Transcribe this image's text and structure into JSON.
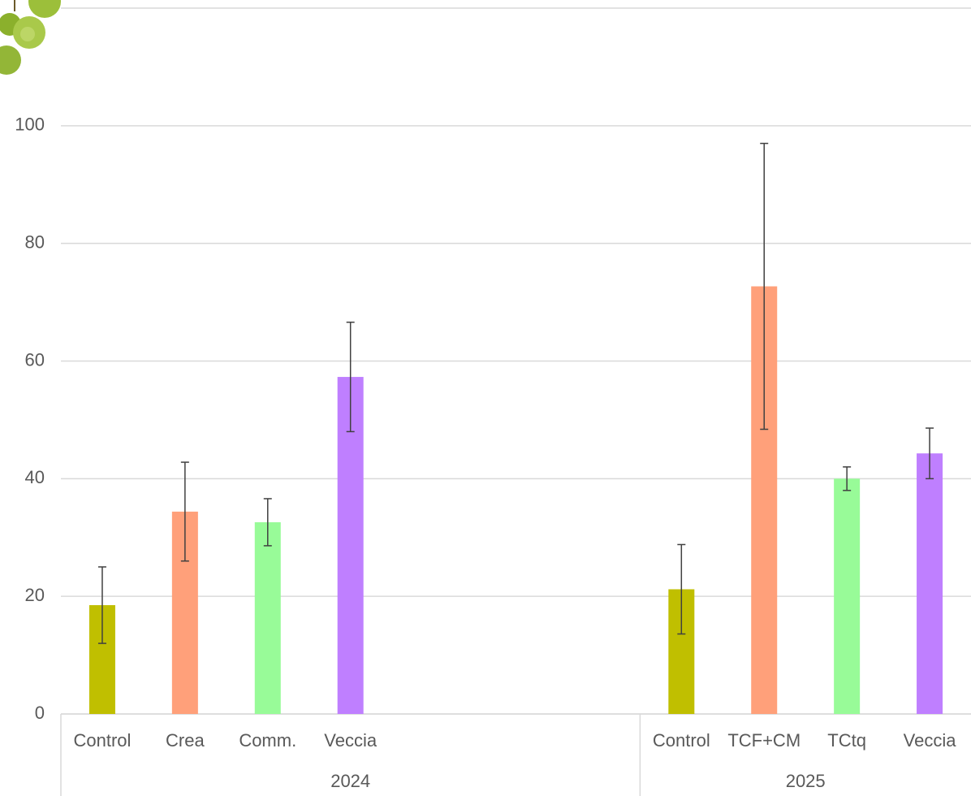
{
  "chart_data": {
    "type": "bar",
    "categories": [
      "Control",
      "Crea",
      "Comm.",
      "Veccia",
      null,
      null,
      null,
      "Control",
      "TCF+CM",
      "TCtq",
      "Veccia"
    ],
    "values": [
      18.5,
      34.4,
      32.6,
      57.3,
      null,
      null,
      null,
      21.2,
      72.7,
      40,
      44.3
    ],
    "errors": [
      6.5,
      8.4,
      4,
      9.3,
      null,
      null,
      null,
      7.6,
      24.3,
      2,
      4.3
    ],
    "colors": [
      "#c0bf00",
      "#ffa07a",
      "#98fb98",
      "#bf7fff",
      null,
      null,
      null,
      "#c0bf00",
      "#ffa07a",
      "#98fb98",
      "#bf7fff"
    ],
    "groups": [
      {
        "label": "2024",
        "count": 7
      },
      {
        "label": "2025",
        "count": 4
      }
    ],
    "ylim": [
      0,
      120
    ],
    "yticks": [
      0,
      20,
      40,
      60,
      80,
      100
    ],
    "grid": true
  }
}
